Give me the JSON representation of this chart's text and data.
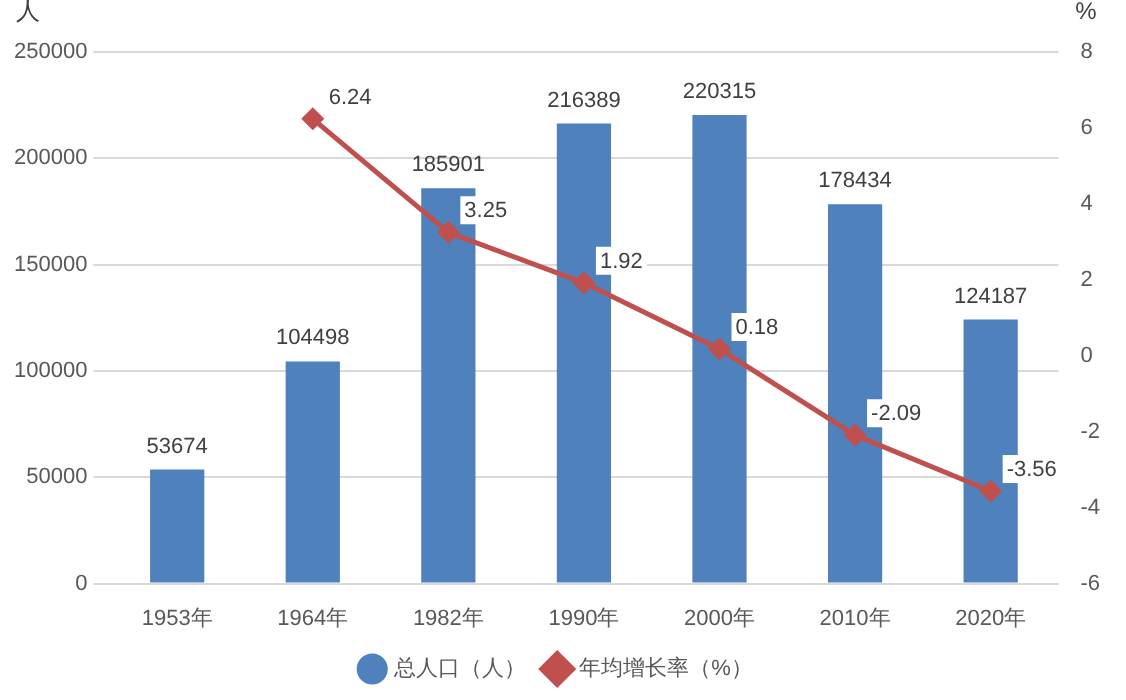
{
  "chart_data": {
    "type": "bar",
    "ylabel": "人",
    "y2label": "%",
    "categories": [
      "1953年",
      "1964年",
      "1982年",
      "1990年",
      "2000年",
      "2010年",
      "2020年"
    ],
    "series": [
      {
        "name": "总人口（人）",
        "color": "#4f81bd",
        "values": [
          53674,
          104498,
          185901,
          216389,
          220315,
          178434,
          124187
        ]
      },
      {
        "name": "年均增长率（%）",
        "type": "line",
        "axis": "y2",
        "color": "#c0504d",
        "marker": "diamond",
        "values": [
          null,
          6.24,
          3.25,
          1.92,
          0.18,
          -2.09,
          -3.56
        ]
      }
    ],
    "ylim": [
      0,
      250000
    ],
    "yticks": [
      0,
      50000,
      100000,
      150000,
      200000,
      250000
    ],
    "y2lim": [
      -6,
      8
    ],
    "y2ticks": [
      -6,
      -4,
      -2,
      0,
      2,
      4,
      6,
      8
    ],
    "grid": "y",
    "legend": "bottom",
    "data_labels": true
  }
}
